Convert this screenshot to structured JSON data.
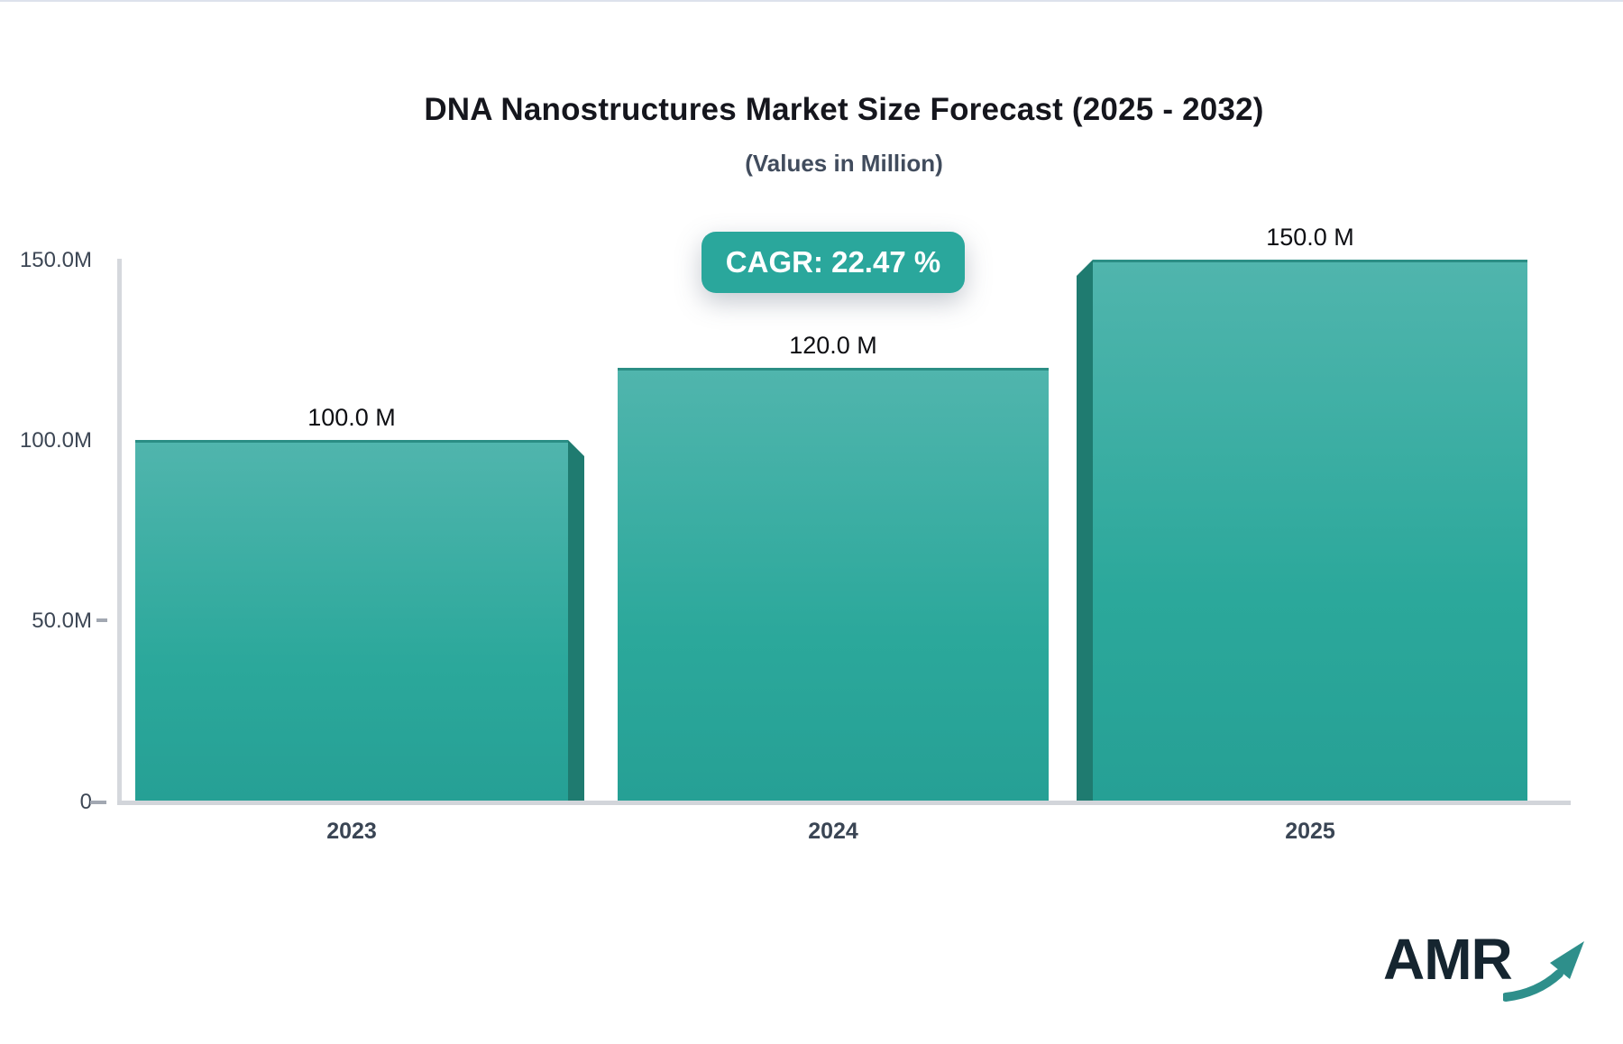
{
  "header": {
    "title": "DNA Nanostructures Market Size Forecast (2025 - 2032)",
    "subtitle": "(Values in Million)"
  },
  "cagr_badge": {
    "label": "CAGR: 22.47 %"
  },
  "chart_data": {
    "type": "bar",
    "title": "DNA Nanostructures Market Size Forecast (2025 - 2032)",
    "subtitle": "(Values in Million)",
    "unit": "Million",
    "categories": [
      "2023",
      "2024",
      "2025"
    ],
    "values": [
      100.0,
      120.0,
      150.0
    ],
    "value_labels": [
      "100.0 M",
      "120.0 M",
      "150.0 M"
    ],
    "cagr_percent": 22.47,
    "ylim": [
      0,
      150
    ],
    "y_tick_values": [
      150,
      100,
      50,
      0
    ],
    "y_tick_labels": [
      "150.0M",
      "100.0M",
      "50.0M",
      "0"
    ],
    "grid": "off",
    "legend": "none",
    "bar_color_top": "#50b5ad",
    "bar_color_bottom": "#26a095",
    "bar_side_color": "#1f7b70",
    "accent_color": "#2aa79c"
  },
  "logo": {
    "text": "AMR"
  }
}
